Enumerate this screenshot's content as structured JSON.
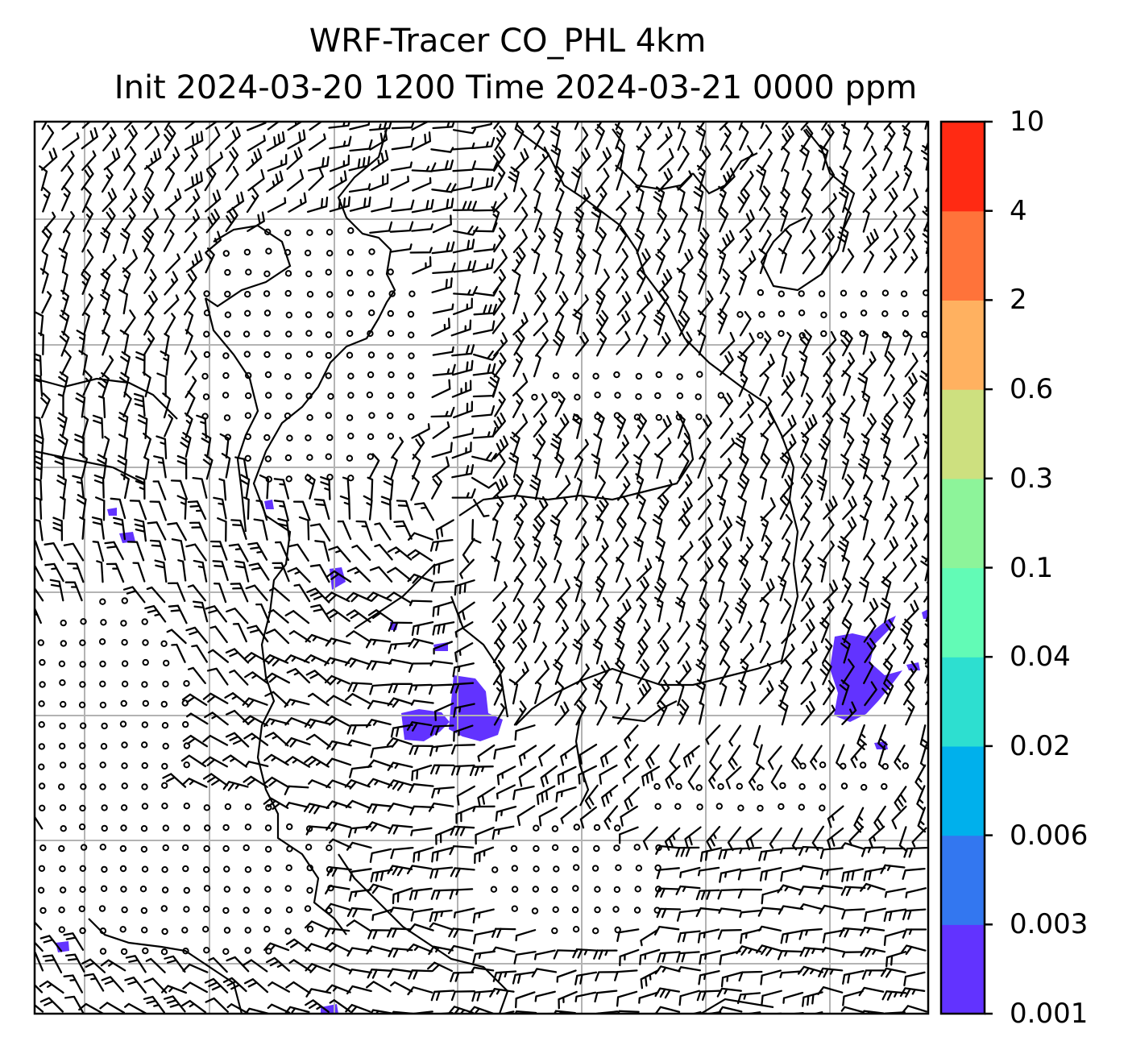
{
  "title": {
    "line1": "WRF-Tracer CO_PHL 4km",
    "line2": "Init 2024-03-20 1200 Time 2024-03-21 0000 ppm"
  },
  "colorbar": {
    "levels": [
      "0.001",
      "0.003",
      "0.006",
      "0.02",
      "0.04",
      "0.1",
      "0.3",
      "0.6",
      "2",
      "4",
      "10"
    ],
    "colors": [
      "#6233ff",
      "#3377f0",
      "#00b0ec",
      "#2ddfd0",
      "#62fbb6",
      "#8df49a",
      "#cde07f",
      "#ffb160",
      "#ff733a",
      "#ff2a13"
    ]
  },
  "map": {
    "grid_color": "#b3b3b3",
    "plume_color": "#6233ff",
    "coastline_color": "#000000"
  }
}
